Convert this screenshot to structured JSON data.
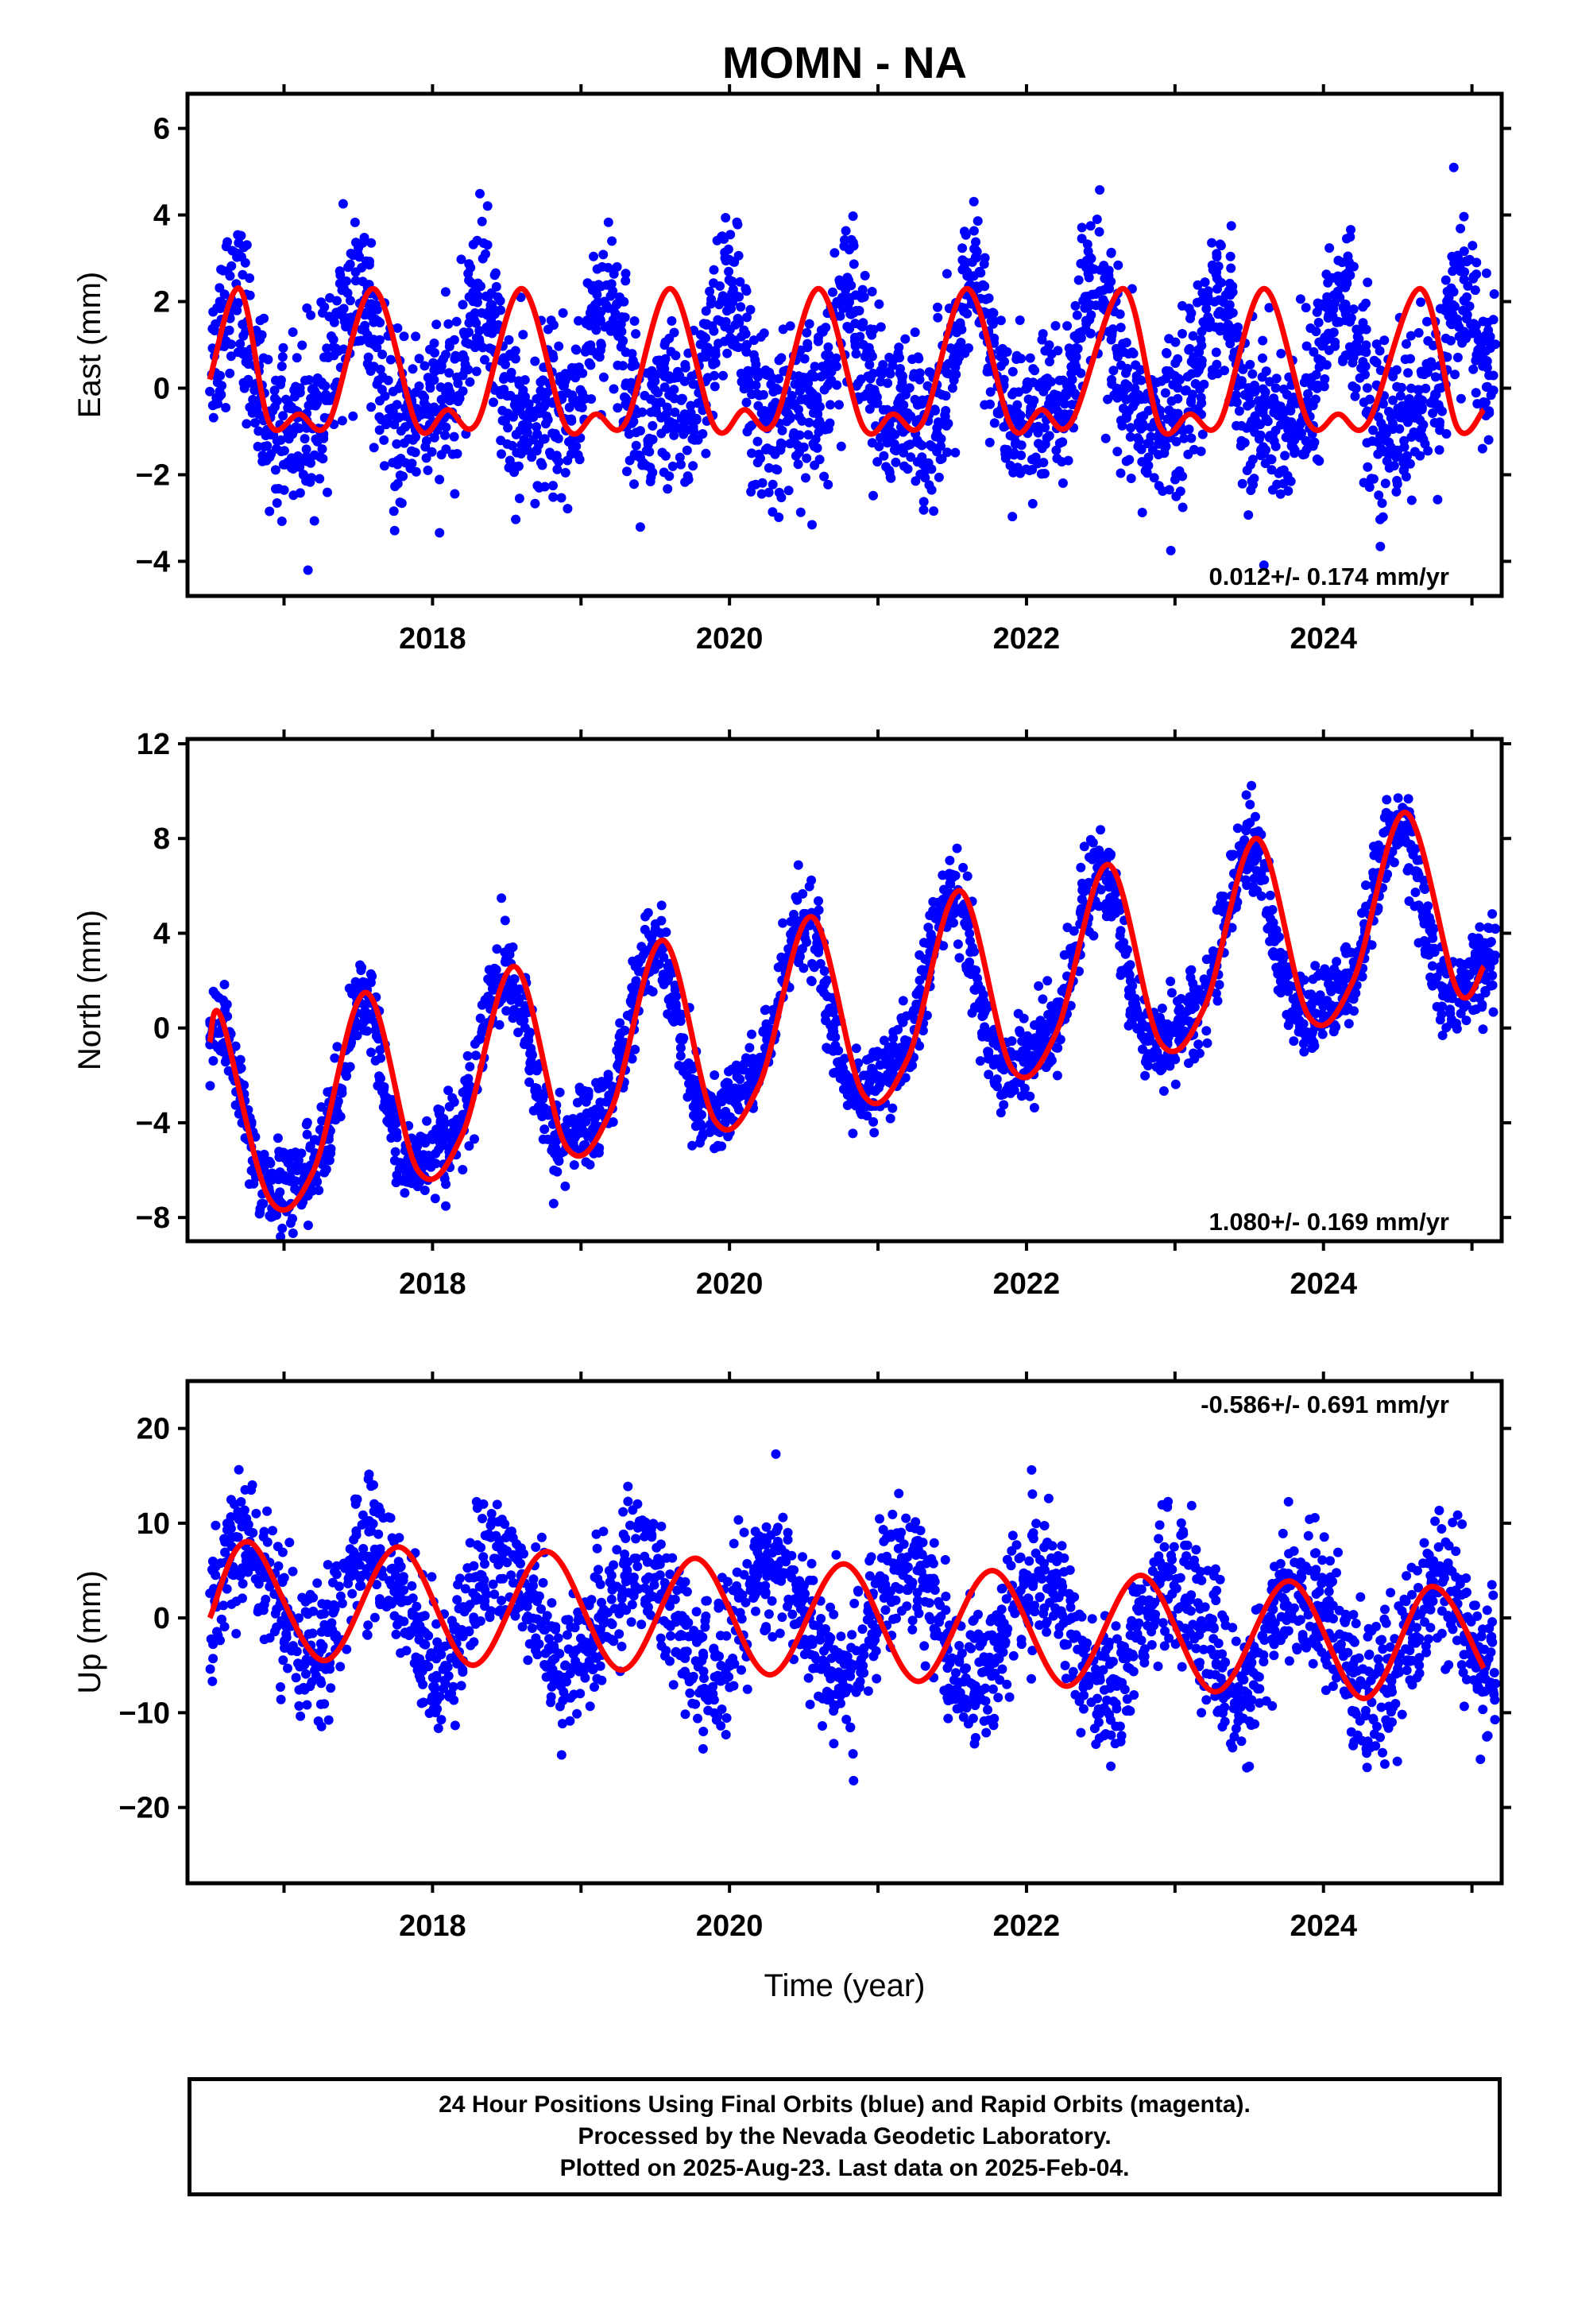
{
  "chart_data": [
    {
      "type": "scatter",
      "panel": "east",
      "title": "MOMN - NA",
      "xlabel": "",
      "ylabel": "East (mm)",
      "xlim": [
        2016.35,
        2025.2
      ],
      "ylim": [
        -4.8,
        6.8
      ],
      "yticks": [
        -4,
        -2,
        0,
        2,
        4,
        6
      ],
      "xticks": [
        2018,
        2020,
        2022,
        2024
      ],
      "grid": false,
      "rate_label": "0.012+/- 0.174 mm/yr",
      "rate_position": "bottom-right",
      "series": [
        {
          "color": "#0000ff",
          "style": "points",
          "x": [
            2016.5,
            2016.58,
            2016.66,
            2016.75,
            2016.83,
            2016.91,
            2017.0,
            2017.08,
            2017.16,
            2017.25,
            2017.33,
            2017.41,
            2017.5,
            2017.58,
            2017.66,
            2017.75,
            2017.83,
            2017.91,
            2018.0,
            2018.08,
            2018.16,
            2018.25,
            2018.33,
            2018.41,
            2018.5,
            2018.58,
            2018.66,
            2018.75,
            2018.83,
            2018.91,
            2019.0,
            2019.08,
            2019.16,
            2019.25,
            2019.33,
            2019.41,
            2019.5,
            2019.58,
            2019.66,
            2019.75,
            2019.83,
            2019.91,
            2020.0,
            2020.08,
            2020.16,
            2020.25,
            2020.33,
            2020.41,
            2020.5,
            2020.58,
            2020.66,
            2020.75,
            2020.83,
            2020.91,
            2021.0,
            2021.08,
            2021.16,
            2021.25,
            2021.33,
            2021.41,
            2021.5,
            2021.58,
            2021.66,
            2021.75,
            2021.83,
            2021.91,
            2022.0,
            2022.08,
            2022.16,
            2022.25,
            2022.33,
            2022.41,
            2022.5,
            2022.58,
            2022.66,
            2022.75,
            2022.83,
            2022.91,
            2023.0,
            2023.08,
            2023.16,
            2023.25,
            2023.33,
            2023.41,
            2023.5,
            2023.58,
            2023.66,
            2023.75,
            2023.83,
            2023.91,
            2024.0,
            2024.08,
            2024.16,
            2024.25,
            2024.33,
            2024.41,
            2024.5,
            2024.58,
            2024.66,
            2024.75,
            2024.83,
            2024.91,
            2025.0,
            2025.08
          ],
          "y": [
            0.2,
            1.6,
            2.3,
            1.3,
            -0.2,
            -0.8,
            -0.9,
            -0.7,
            -0.9,
            -0.6,
            0.6,
            1.8,
            2.3,
            1.4,
            -0.1,
            -0.9,
            -0.9,
            -0.5,
            -0.4,
            -0.8,
            0.2,
            1.6,
            2.3,
            1.4,
            -0.2,
            -0.9,
            -0.9,
            -0.6,
            -0.5,
            -0.8,
            0.1,
            1.6,
            2.3,
            1.4,
            -0.2,
            -0.8,
            -0.9,
            -0.6,
            -0.5,
            -0.8,
            0.2,
            1.7,
            2.3,
            1.3,
            -0.2,
            -0.9,
            -0.8,
            -0.6,
            -0.6,
            -0.7,
            0.4,
            1.8,
            2.3,
            1.2,
            -0.2,
            -0.9,
            -0.8,
            -0.6,
            -0.6,
            -0.6,
            0.5,
            1.9,
            2.3,
            1.1,
            -0.3,
            -0.8,
            -0.8,
            -0.6,
            -0.6,
            -0.5,
            0.7,
            2.0,
            2.2,
            1.0,
            -0.4,
            -0.9,
            -0.8,
            -0.6,
            -0.6,
            -0.4,
            0.8,
            2.1,
            2.1,
            0.9,
            -0.5,
            -0.9,
            -0.8,
            -0.6,
            -0.6,
            -0.3,
            0.9,
            2.1,
            2.0,
            0.7,
            -0.6,
            -0.9,
            -0.7,
            -0.6,
            -0.5,
            -0.2,
            1.0,
            2.2,
            1.9,
            0.5
          ]
        },
        {
          "color": "#ff0000",
          "style": "line",
          "x": [
            2016.5,
            2016.7,
            2016.9,
            2017.1,
            2017.3,
            2017.6,
            2017.9,
            2018.1,
            2018.3,
            2018.6,
            2018.9,
            2019.1,
            2019.3,
            2019.6,
            2019.9,
            2020.1,
            2020.3,
            2020.6,
            2020.9,
            2021.1,
            2021.3,
            2021.6,
            2021.9,
            2022.1,
            2022.3,
            2022.65,
            2022.9,
            2023.1,
            2023.3,
            2023.6,
            2023.9,
            2024.1,
            2024.3,
            2024.65,
            2024.9,
            2025.08
          ],
          "y": [
            0.2,
            2.3,
            -0.8,
            -0.6,
            -0.8,
            2.3,
            -0.9,
            -0.5,
            -0.8,
            2.3,
            -0.9,
            -0.6,
            -0.8,
            2.3,
            -0.9,
            -0.5,
            -0.8,
            2.3,
            -0.9,
            -0.6,
            -0.8,
            2.3,
            -0.9,
            -0.5,
            -0.8,
            2.3,
            -0.9,
            -0.6,
            -0.8,
            2.3,
            -0.8,
            -0.6,
            -0.8,
            2.3,
            -0.9,
            -0.5
          ]
        }
      ]
    },
    {
      "type": "scatter",
      "panel": "north",
      "xlabel": "",
      "ylabel": "North (mm)",
      "xlim": [
        2016.35,
        2025.2
      ],
      "ylim": [
        -9.0,
        12.2
      ],
      "yticks": [
        -8,
        -4,
        0,
        4,
        8,
        12
      ],
      "xticks": [
        2018,
        2020,
        2022,
        2024
      ],
      "grid": false,
      "rate_label": "1.080+/- 0.169 mm/yr",
      "rate_position": "bottom-right",
      "series": [
        {
          "color": "#0000ff",
          "style": "points",
          "x": [
            2016.5,
            2016.6,
            2016.7,
            2016.8,
            2016.9,
            2017.0,
            2017.1,
            2017.2,
            2017.3,
            2017.4,
            2017.5,
            2017.6,
            2017.7,
            2017.8,
            2017.9,
            2018.0,
            2018.1,
            2018.2,
            2018.3,
            2018.4,
            2018.5,
            2018.6,
            2018.7,
            2018.8,
            2018.9,
            2019.0,
            2019.1,
            2019.2,
            2019.3,
            2019.4,
            2019.5,
            2019.6,
            2019.7,
            2019.8,
            2019.9,
            2020.0,
            2020.1,
            2020.2,
            2020.3,
            2020.4,
            2020.5,
            2020.6,
            2020.7,
            2020.8,
            2020.9,
            2021.0,
            2021.1,
            2021.2,
            2021.3,
            2021.4,
            2021.5,
            2021.6,
            2021.7,
            2021.8,
            2021.9,
            2022.0,
            2022.1,
            2022.2,
            2022.3,
            2022.4,
            2022.5,
            2022.6,
            2022.7,
            2022.8,
            2022.9,
            2023.0,
            2023.1,
            2023.2,
            2023.3,
            2023.4,
            2023.5,
            2023.6,
            2023.7,
            2023.8,
            2023.9,
            2024.0,
            2024.1,
            2024.2,
            2024.3,
            2024.4,
            2024.5,
            2024.6,
            2024.7,
            2024.8,
            2024.9,
            2025.0,
            2025.08
          ],
          "y": [
            -0.5,
            0.3,
            -2.5,
            -5.5,
            -7.0,
            -6.8,
            -6.3,
            -6.0,
            -4.5,
            -1.5,
            1.2,
            0.5,
            -3.5,
            -5.8,
            -5.6,
            -5.0,
            -4.7,
            -4.0,
            -1.5,
            1.5,
            2.4,
            0.8,
            -2.5,
            -4.6,
            -4.6,
            -4.2,
            -3.8,
            -3.0,
            -0.5,
            2.5,
            3.5,
            2.2,
            -1.5,
            -3.5,
            -3.8,
            -3.2,
            -2.6,
            -2.0,
            0.5,
            3.5,
            4.6,
            3.3,
            -0.5,
            -2.5,
            -2.7,
            -2.2,
            -1.6,
            -1.0,
            1.5,
            4.5,
            5.7,
            4.4,
            0.5,
            -1.5,
            -1.7,
            -1.2,
            -0.6,
            0.0,
            2.5,
            5.5,
            6.8,
            5.5,
            1.5,
            -0.5,
            -0.6,
            -0.1,
            0.4,
            1.0,
            3.5,
            6.5,
            7.9,
            6.6,
            2.5,
            0.5,
            0.4,
            0.9,
            1.4,
            2.0,
            4.5,
            7.5,
            9.0,
            7.7,
            3.5,
            1.5,
            1.6,
            2.1,
            2.6
          ]
        },
        {
          "color": "#ff0000",
          "style": "line",
          "x": [
            2016.5,
            2016.58,
            2016.9,
            2017.2,
            2017.55,
            2017.9,
            2018.2,
            2018.55,
            2018.9,
            2019.2,
            2019.55,
            2019.9,
            2020.2,
            2020.55,
            2020.9,
            2021.2,
            2021.55,
            2021.9,
            2022.2,
            2022.55,
            2022.9,
            2023.2,
            2023.55,
            2023.9,
            2024.2,
            2024.55,
            2024.9,
            2025.08
          ],
          "y": [
            -0.6,
            0.4,
            -7.2,
            -6.0,
            1.5,
            -6.0,
            -4.5,
            2.6,
            -5.0,
            -3.5,
            3.7,
            -3.9,
            -2.4,
            4.7,
            -2.8,
            -1.3,
            5.8,
            -1.7,
            -0.2,
            6.9,
            -0.6,
            0.9,
            8.0,
            0.5,
            2.0,
            9.1,
            1.6,
            2.6
          ]
        }
      ]
    },
    {
      "type": "scatter",
      "panel": "up",
      "xlabel": "Time (year)",
      "ylabel": "Up (mm)",
      "xlim": [
        2016.35,
        2025.2
      ],
      "ylim": [
        -28,
        25
      ],
      "yticks": [
        -20,
        -10,
        0,
        10,
        20
      ],
      "xticks": [
        2018,
        2020,
        2022,
        2024
      ],
      "grid": false,
      "rate_label": "-0.586+/- 0.691 mm/yr",
      "rate_position": "top-right",
      "series": [
        {
          "color": "#0000ff",
          "style": "points",
          "x": [
            2016.5,
            2016.6,
            2016.7,
            2016.8,
            2016.9,
            2017.0,
            2017.1,
            2017.2,
            2017.3,
            2017.4,
            2017.5,
            2017.6,
            2017.7,
            2017.8,
            2017.9,
            2018.0,
            2018.1,
            2018.2,
            2018.3,
            2018.4,
            2018.5,
            2018.6,
            2018.7,
            2018.8,
            2018.9,
            2019.0,
            2019.1,
            2019.2,
            2019.3,
            2019.4,
            2019.5,
            2019.6,
            2019.7,
            2019.8,
            2019.9,
            2020.0,
            2020.1,
            2020.2,
            2020.3,
            2020.4,
            2020.5,
            2020.6,
            2020.7,
            2020.8,
            2020.9,
            2021.0,
            2021.1,
            2021.2,
            2021.3,
            2021.4,
            2021.5,
            2021.6,
            2021.7,
            2021.8,
            2021.9,
            2022.0,
            2022.1,
            2022.2,
            2022.3,
            2022.4,
            2022.5,
            2022.6,
            2022.7,
            2022.8,
            2022.9,
            2023.0,
            2023.1,
            2023.2,
            2023.3,
            2023.4,
            2023.5,
            2023.6,
            2023.7,
            2023.8,
            2023.9,
            2024.0,
            2024.1,
            2024.2,
            2024.3,
            2024.4,
            2024.5,
            2024.6,
            2024.7,
            2024.8,
            2024.9,
            2025.0,
            2025.08
          ],
          "y": [
            0.0,
            5.5,
            7.8,
            6.5,
            3.0,
            -1.0,
            -4.0,
            -4.3,
            -1.5,
            3.0,
            6.5,
            7.3,
            5.5,
            1.8,
            -2.5,
            -4.8,
            -4.5,
            -1.5,
            3.0,
            6.0,
            6.8,
            5.0,
            1.0,
            -3.0,
            -5.5,
            -5.0,
            -2.0,
            2.5,
            5.5,
            6.2,
            4.5,
            0.8,
            -3.5,
            -5.8,
            -5.5,
            -2.5,
            2.0,
            5.0,
            5.6,
            4.0,
            0.5,
            -4.0,
            -6.3,
            -6.0,
            -3.0,
            1.5,
            4.5,
            5.0,
            3.5,
            0.0,
            -4.5,
            -6.8,
            -6.5,
            -3.5,
            1.0,
            4.0,
            4.5,
            3.0,
            -0.5,
            -5.0,
            -7.3,
            -7.0,
            -4.0,
            0.5,
            3.5,
            4.0,
            2.5,
            -1.0,
            -5.5,
            -7.8,
            -7.5,
            -4.5,
            0.0,
            3.0,
            3.5,
            2.0,
            -1.5,
            -6.0,
            -8.3,
            -8.0,
            -5.0,
            -0.5,
            2.5,
            3.0,
            1.0,
            -2.5,
            -5.2
          ]
        },
        {
          "color": "#ff0000",
          "style": "line",
          "x": [
            2016.5,
            2016.77,
            2017.27,
            2017.77,
            2018.27,
            2018.77,
            2019.27,
            2019.77,
            2020.27,
            2020.77,
            2021.27,
            2021.77,
            2022.27,
            2022.77,
            2023.27,
            2023.77,
            2024.27,
            2024.72,
            2025.08
          ],
          "y": [
            0.0,
            8.0,
            -4.5,
            7.5,
            -5.0,
            7.0,
            -5.5,
            6.3,
            -6.0,
            5.7,
            -6.7,
            5.0,
            -7.2,
            4.5,
            -7.8,
            3.9,
            -8.5,
            3.3,
            -5.3
          ]
        }
      ]
    }
  ],
  "footer": {
    "line1": "24 Hour Positions Using Final Orbits (blue) and Rapid Orbits (magenta).",
    "line2": "Processed by the Nevada Geodetic Laboratory.",
    "line3": "Plotted on 2025-Aug-23. Last data on 2025-Feb-04."
  }
}
